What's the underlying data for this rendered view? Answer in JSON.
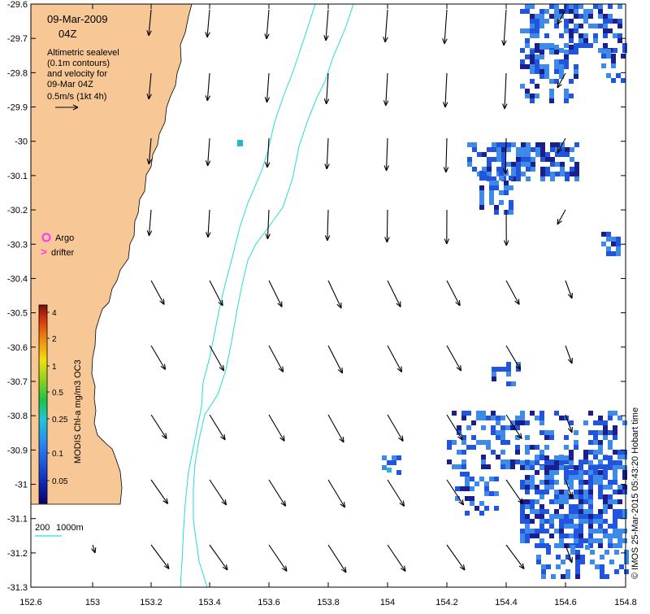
{
  "header": {
    "date": "09-Mar-2009",
    "time": "04Z",
    "desc_lines": [
      "Altimetric sealevel",
      "(0.1m contours)",
      "and velocity for",
      "09-Mar 04Z"
    ],
    "scale_label": "0.5m/s (1kt 4h)"
  },
  "legend": {
    "argo_label": "Argo",
    "drifter_label": "drifter",
    "argo_symbol": "o",
    "drifter_symbol": ">",
    "argo_color": "#ff33ff",
    "drifter_color": "#ff33ff"
  },
  "colorbar": {
    "title": "MODIS Chl-a mg/m3 OC3",
    "tick_labels": [
      "4",
      "2",
      "1",
      "0.5",
      "0.25",
      "0.1",
      "0.05"
    ]
  },
  "isobaths": {
    "labels": [
      "200",
      "1000m"
    ],
    "color": "#22dddd"
  },
  "credit": "© IMOS 25-Mar-2015 05:43:20 Hobart time",
  "axes": {
    "x_ticks": [
      "152.6",
      "153",
      "153.2",
      "153.4",
      "153.6",
      "153.8",
      "154",
      "154.2",
      "154.4",
      "154.6",
      "154.8"
    ],
    "y_ticks": [
      "-29.6",
      "-29.7",
      "-29.8",
      "-29.9",
      "-30",
      "-30.1",
      "-30.2",
      "-30.3",
      "-30.4",
      "-30.5",
      "-30.6",
      "-30.7",
      "-30.8",
      "-30.9",
      "-31",
      "-31.1",
      "-31.2",
      "-31.3"
    ],
    "xlim": [
      152.6,
      154.8
    ],
    "ylim": [
      -31.3,
      -29.6
    ]
  },
  "colors": {
    "land": "#f8c796",
    "chl_dark": "#1a1f8c",
    "chl_mid": "#2255dd",
    "chl_light": "#3d8ae8",
    "chl_cyan": "#24b8c9",
    "arrow": "#000000"
  }
}
